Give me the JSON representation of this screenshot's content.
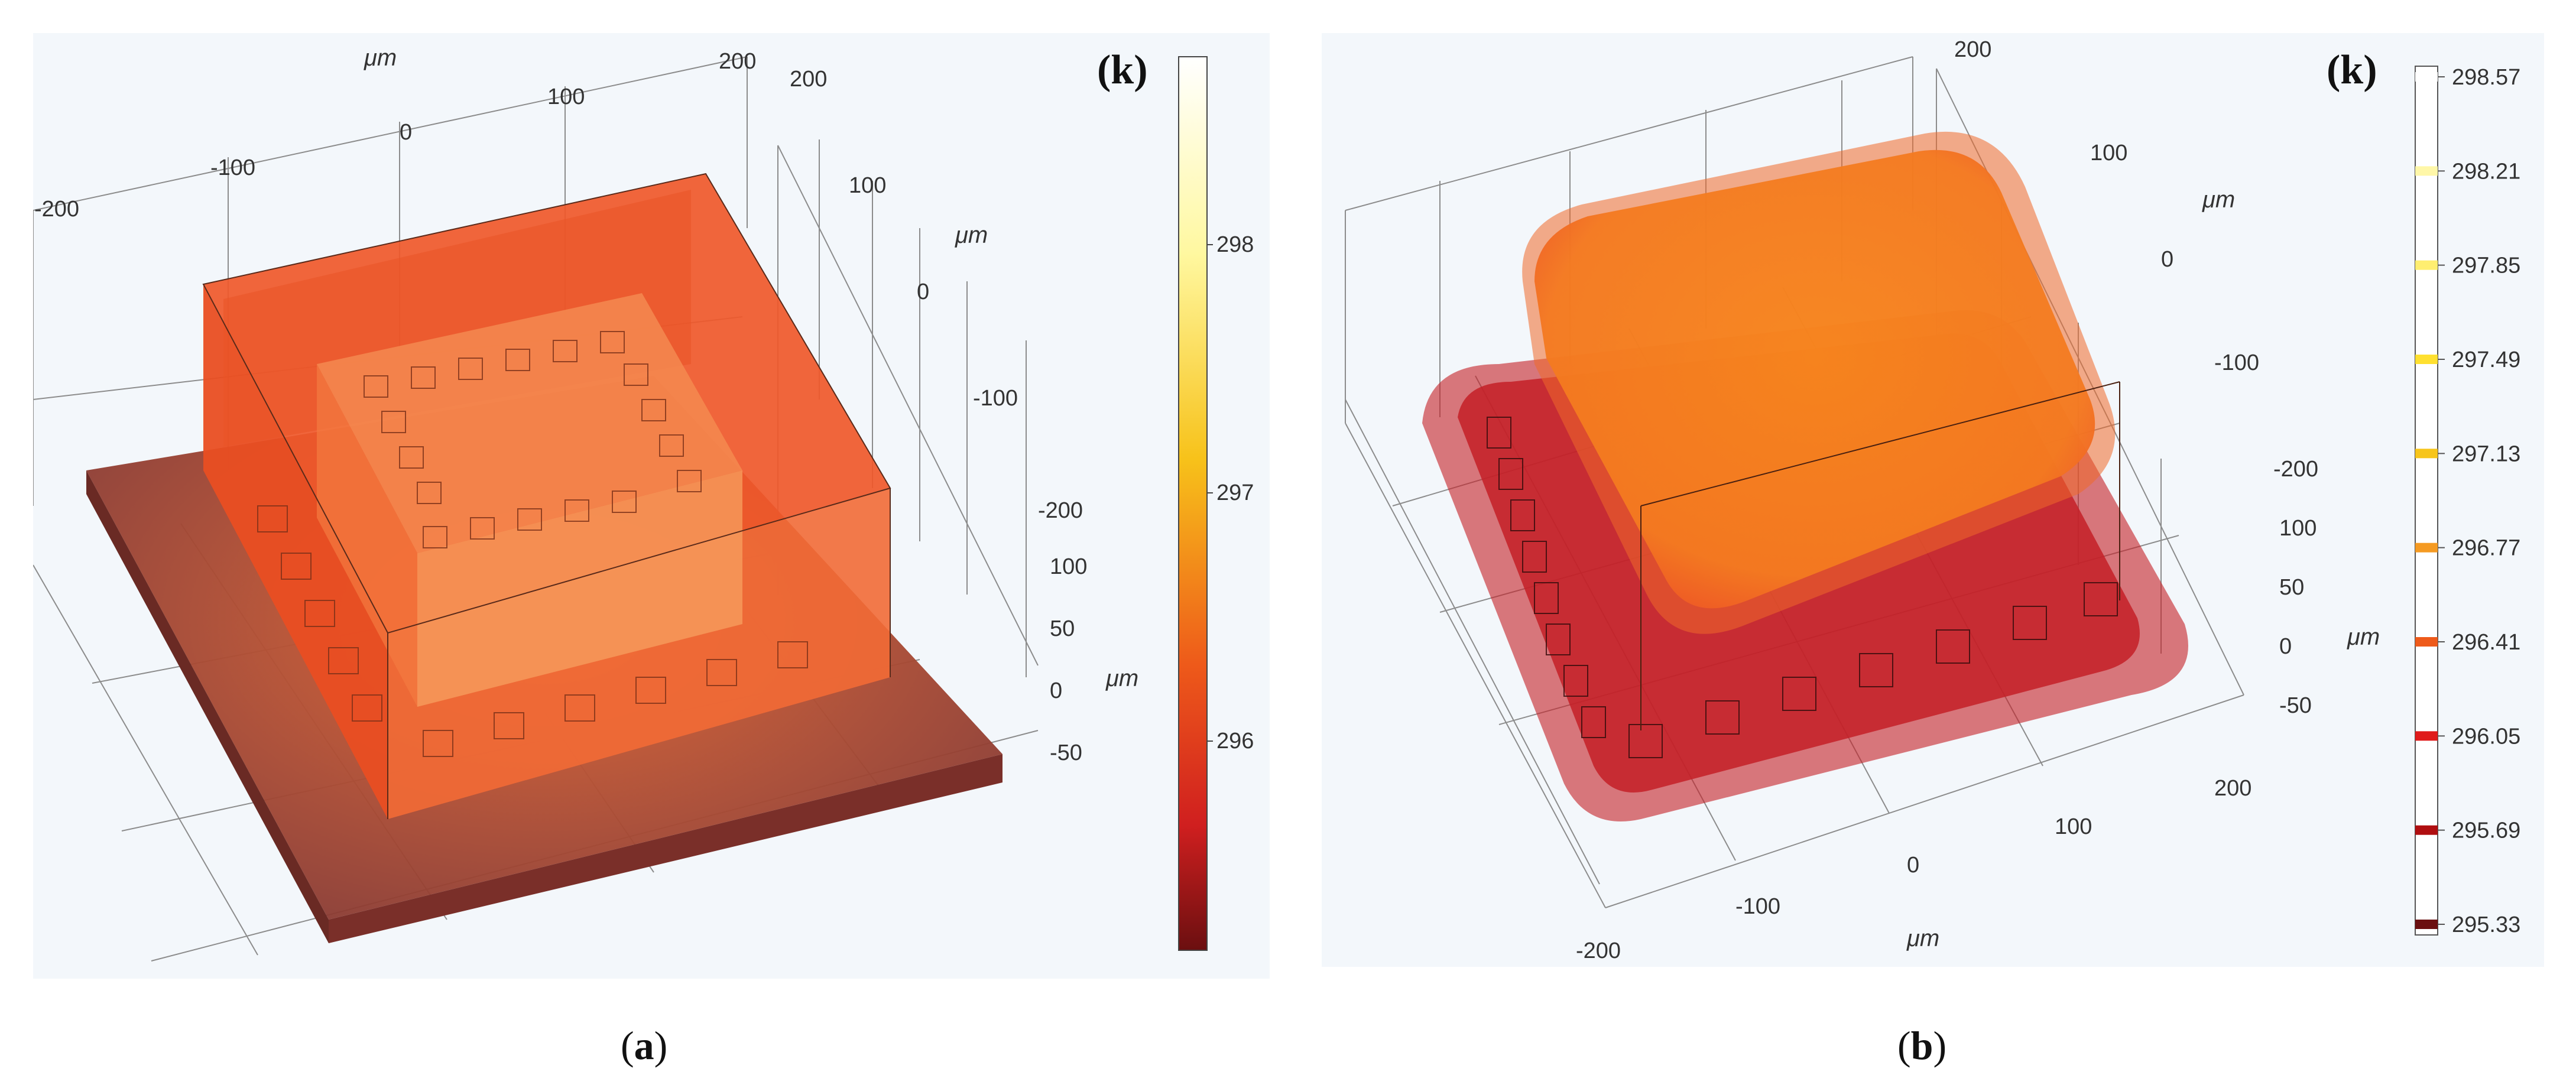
{
  "panels": {
    "a": {
      "caption_open": "(",
      "caption_letter": "a",
      "caption_close": ")",
      "unit_label": "(k)",
      "axis_unit": "μm",
      "top_axis_ticks": [
        "-200",
        "-100",
        "0",
        "100",
        "200"
      ],
      "right_axis_ticks": [
        "200",
        "100",
        "0",
        "-100",
        "-200"
      ],
      "z_axis_ticks": [
        "100",
        "50",
        "0",
        "-50"
      ],
      "colorbar_ticks": [
        "298",
        "297",
        "296"
      ],
      "colorbar_range": [
        295.33,
        298.57
      ]
    },
    "b": {
      "caption_open": "(",
      "caption_letter": "b",
      "caption_close": ")",
      "unit_label": "(k)",
      "axis_unit": "μm",
      "right_axis_ticks": [
        "200",
        "100",
        "0",
        "-100",
        "-200"
      ],
      "z_axis_ticks": [
        "100",
        "50",
        "0",
        "-50"
      ],
      "bottom_axis_ticks": [
        "-200",
        "-100",
        "0",
        "100",
        "200"
      ],
      "colorbar_ticks": [
        "298.57",
        "298.21",
        "297.85",
        "297.49",
        "297.13",
        "296.77",
        "296.41",
        "296.05",
        "295.69",
        "295.33"
      ]
    }
  },
  "colors": {
    "panel_bg": "#f3f7fb",
    "substrate": "#8a3a32",
    "chip_outer": "#f0582a",
    "chip_inner": "#f58a50",
    "blob_b": "#f7861d",
    "base_b": "#c42027"
  }
}
